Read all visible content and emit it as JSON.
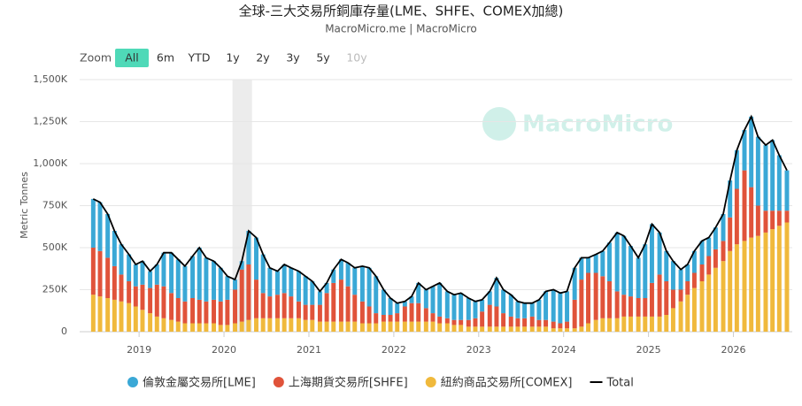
{
  "chart_data": {
    "type": "bar",
    "title": "全球-三大交易所銅庫存量(LME、SHFE、COMEX加總)",
    "subtitle": "MacroMicro.me | MacroMicro",
    "watermark": "MacroMicro",
    "range_selector": {
      "label": "Zoom",
      "buttons": [
        {
          "label": "All",
          "state": "selected"
        },
        {
          "label": "6m",
          "state": "normal"
        },
        {
          "label": "YTD",
          "state": "normal"
        },
        {
          "label": "1y",
          "state": "normal"
        },
        {
          "label": "2y",
          "state": "normal"
        },
        {
          "label": "3y",
          "state": "normal"
        },
        {
          "label": "5y",
          "state": "normal"
        },
        {
          "label": "10y",
          "state": "disabled"
        }
      ]
    },
    "y_label": "Metric Tonnes",
    "stacked": true,
    "grid": true,
    "highlight": [
      2020.1,
      2020.33
    ],
    "xlim": [
      2018.3,
      2026.62
    ],
    "xticks": [
      2019,
      2020,
      2021,
      2022,
      2023,
      2024,
      2025,
      2026
    ],
    "ylim": [
      0,
      1500000
    ],
    "yticks": [
      0,
      {
        "value": 250000,
        "label": "250K"
      },
      {
        "value": 500000,
        "label": "500K"
      },
      {
        "value": 750000,
        "label": "750K"
      },
      {
        "value": 1000000,
        "label": "1,000K"
      },
      {
        "value": 1250000,
        "label": "1,250K"
      },
      {
        "value": 1500000,
        "label": "1,500K"
      }
    ],
    "x": [
      2018.46,
      2018.54,
      2018.63,
      2018.71,
      2018.79,
      2018.88,
      2018.96,
      2019.04,
      2019.13,
      2019.21,
      2019.29,
      2019.38,
      2019.46,
      2019.54,
      2019.63,
      2019.71,
      2019.79,
      2019.88,
      2019.96,
      2020.04,
      2020.13,
      2020.21,
      2020.29,
      2020.38,
      2020.46,
      2020.54,
      2020.63,
      2020.71,
      2020.79,
      2020.88,
      2020.96,
      2021.04,
      2021.13,
      2021.21,
      2021.29,
      2021.38,
      2021.46,
      2021.54,
      2021.63,
      2021.71,
      2021.79,
      2021.88,
      2021.96,
      2022.04,
      2022.13,
      2022.21,
      2022.29,
      2022.38,
      2022.46,
      2022.54,
      2022.63,
      2022.71,
      2022.79,
      2022.88,
      2022.96,
      2023.04,
      2023.13,
      2023.21,
      2023.29,
      2023.38,
      2023.46,
      2023.54,
      2023.63,
      2023.71,
      2023.79,
      2023.88,
      2023.96,
      2024.04,
      2024.13,
      2024.21,
      2024.29,
      2024.38,
      2024.46,
      2024.54,
      2024.63,
      2024.71,
      2024.79,
      2024.88,
      2024.96,
      2025.04,
      2025.13,
      2025.21,
      2025.29,
      2025.38,
      2025.46,
      2025.54,
      2025.63,
      2025.71,
      2025.79,
      2025.88,
      2025.96,
      2026.04,
      2026.13,
      2026.21,
      2026.29,
      2026.38,
      2026.46,
      2026.54,
      2026.63
    ],
    "series": [
      {
        "name": "倫敦金屬交易所[LME]",
        "color": "#3aa8d6",
        "type": "bar",
        "values": [
          290000,
          290000,
          260000,
          210000,
          180000,
          160000,
          130000,
          140000,
          100000,
          120000,
          200000,
          240000,
          230000,
          210000,
          250000,
          310000,
          260000,
          230000,
          200000,
          140000,
          60000,
          50000,
          200000,
          250000,
          230000,
          170000,
          140000,
          170000,
          170000,
          180000,
          170000,
          140000,
          80000,
          60000,
          80000,
          120000,
          140000,
          160000,
          210000,
          230000,
          220000,
          150000,
          100000,
          60000,
          30000,
          40000,
          120000,
          110000,
          160000,
          200000,
          160000,
          150000,
          160000,
          130000,
          100000,
          70000,
          80000,
          170000,
          140000,
          130000,
          100000,
          90000,
          80000,
          120000,
          170000,
          190000,
          180000,
          180000,
          190000,
          130000,
          90000,
          110000,
          150000,
          230000,
          350000,
          350000,
          300000,
          240000,
          320000,
          350000,
          250000,
          180000,
          170000,
          120000,
          100000,
          130000,
          140000,
          110000,
          130000,
          160000,
          220000,
          230000,
          240000,
          420000,
          410000,
          390000,
          420000,
          330000,
          240000
        ]
      },
      {
        "name": "上海期貨交易所[SHFE]",
        "color": "#e0533a",
        "type": "bar",
        "values": [
          280000,
          270000,
          240000,
          200000,
          160000,
          130000,
          120000,
          150000,
          150000,
          190000,
          190000,
          160000,
          140000,
          130000,
          150000,
          140000,
          130000,
          140000,
          140000,
          150000,
          200000,
          310000,
          330000,
          230000,
          150000,
          130000,
          140000,
          150000,
          130000,
          100000,
          90000,
          90000,
          100000,
          170000,
          230000,
          250000,
          210000,
          160000,
          130000,
          100000,
          60000,
          40000,
          40000,
          50000,
          90000,
          110000,
          110000,
          80000,
          50000,
          40000,
          30000,
          30000,
          30000,
          40000,
          50000,
          90000,
          130000,
          120000,
          80000,
          60000,
          50000,
          50000,
          60000,
          40000,
          40000,
          40000,
          30000,
          40000,
          170000,
          280000,
          300000,
          280000,
          250000,
          220000,
          160000,
          130000,
          120000,
          110000,
          110000,
          200000,
          250000,
          200000,
          110000,
          70000,
          80000,
          90000,
          100000,
          110000,
          110000,
          120000,
          200000,
          330000,
          420000,
          300000,
          180000,
          130000,
          110000,
          90000,
          70000
        ]
      },
      {
        "name": "紐約商品交易所[COMEX]",
        "color": "#f0b93c",
        "type": "bar",
        "values": [
          220000,
          210000,
          200000,
          190000,
          180000,
          170000,
          150000,
          130000,
          110000,
          90000,
          80000,
          70000,
          60000,
          50000,
          50000,
          50000,
          50000,
          50000,
          40000,
          40000,
          50000,
          60000,
          70000,
          80000,
          80000,
          80000,
          80000,
          80000,
          80000,
          80000,
          70000,
          70000,
          60000,
          60000,
          60000,
          60000,
          60000,
          60000,
          50000,
          50000,
          50000,
          60000,
          60000,
          60000,
          60000,
          60000,
          60000,
          60000,
          60000,
          50000,
          50000,
          40000,
          40000,
          30000,
          30000,
          30000,
          30000,
          30000,
          30000,
          30000,
          30000,
          30000,
          30000,
          30000,
          30000,
          20000,
          20000,
          20000,
          20000,
          30000,
          50000,
          70000,
          80000,
          80000,
          80000,
          90000,
          90000,
          90000,
          90000,
          90000,
          90000,
          100000,
          140000,
          180000,
          220000,
          260000,
          300000,
          340000,
          380000,
          420000,
          480000,
          520000,
          540000,
          560000,
          570000,
          590000,
          610000,
          630000,
          650000
        ]
      },
      {
        "name": "Total",
        "color": "#000000",
        "type": "line",
        "values": [
          790000,
          770000,
          700000,
          600000,
          520000,
          460000,
          400000,
          420000,
          360000,
          400000,
          470000,
          470000,
          430000,
          390000,
          450000,
          500000,
          440000,
          420000,
          380000,
          330000,
          310000,
          420000,
          600000,
          560000,
          460000,
          380000,
          360000,
          400000,
          380000,
          360000,
          330000,
          300000,
          240000,
          290000,
          370000,
          430000,
          410000,
          380000,
          390000,
          380000,
          330000,
          250000,
          200000,
          170000,
          180000,
          210000,
          290000,
          250000,
          270000,
          290000,
          240000,
          220000,
          230000,
          200000,
          180000,
          190000,
          240000,
          320000,
          250000,
          220000,
          180000,
          170000,
          170000,
          190000,
          240000,
          250000,
          230000,
          240000,
          380000,
          440000,
          440000,
          460000,
          480000,
          530000,
          590000,
          570000,
          510000,
          440000,
          520000,
          640000,
          590000,
          480000,
          420000,
          370000,
          400000,
          480000,
          540000,
          560000,
          620000,
          700000,
          900000,
          1080000,
          1200000,
          1280000,
          1160000,
          1110000,
          1140000,
          1050000,
          960000
        ]
      }
    ]
  }
}
